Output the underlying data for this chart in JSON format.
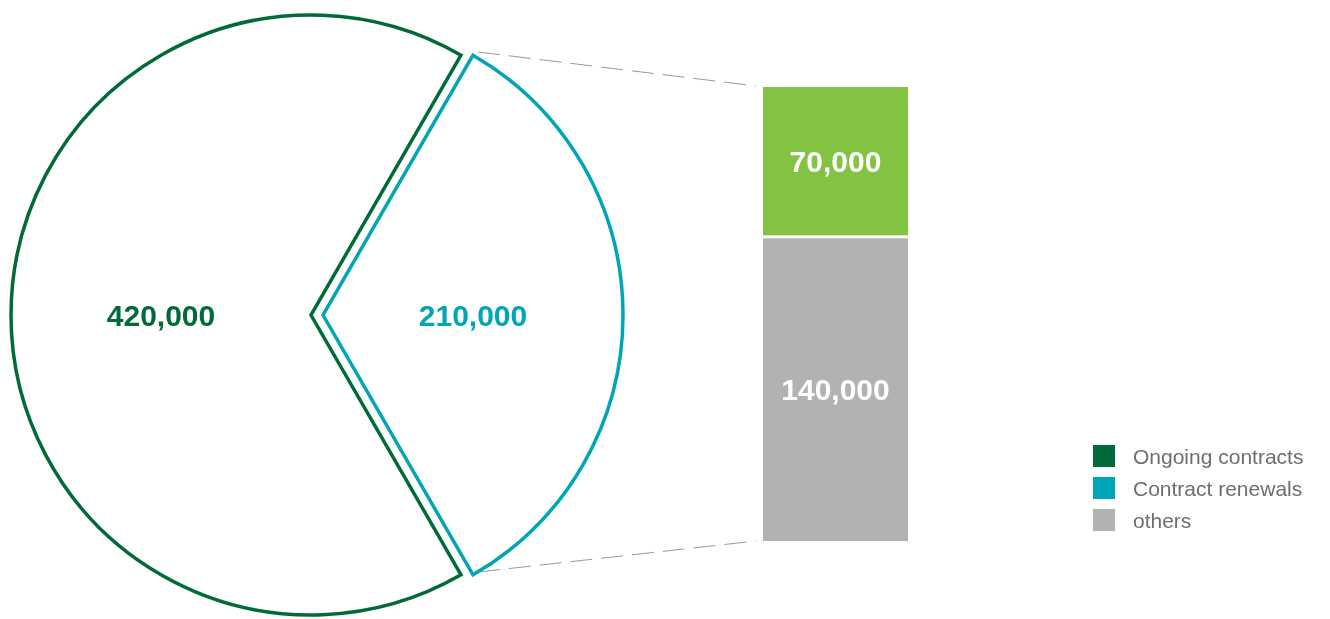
{
  "chart_data": [
    {
      "type": "pie",
      "categories": [
        "Ongoing contracts",
        "Contract renewals"
      ],
      "values": [
        420000,
        210000
      ],
      "value_labels": [
        "420,000",
        "210,000"
      ],
      "colors": [
        "#006a38",
        "#00a6b6"
      ],
      "legend": "bottom right"
    },
    {
      "type": "bar",
      "categories": [
        null
      ],
      "stacked": true,
      "legend": "bottom right",
      "series": [
        {
          "name": "others",
          "color": "#b1b3b3",
          "values": [
            140000
          ],
          "value_labels": [
            "140,000"
          ]
        },
        {
          "color": "#82c341",
          "values": [
            70000
          ],
          "value_labels": [
            "70,000"
          ]
        }
      ]
    }
  ]
}
